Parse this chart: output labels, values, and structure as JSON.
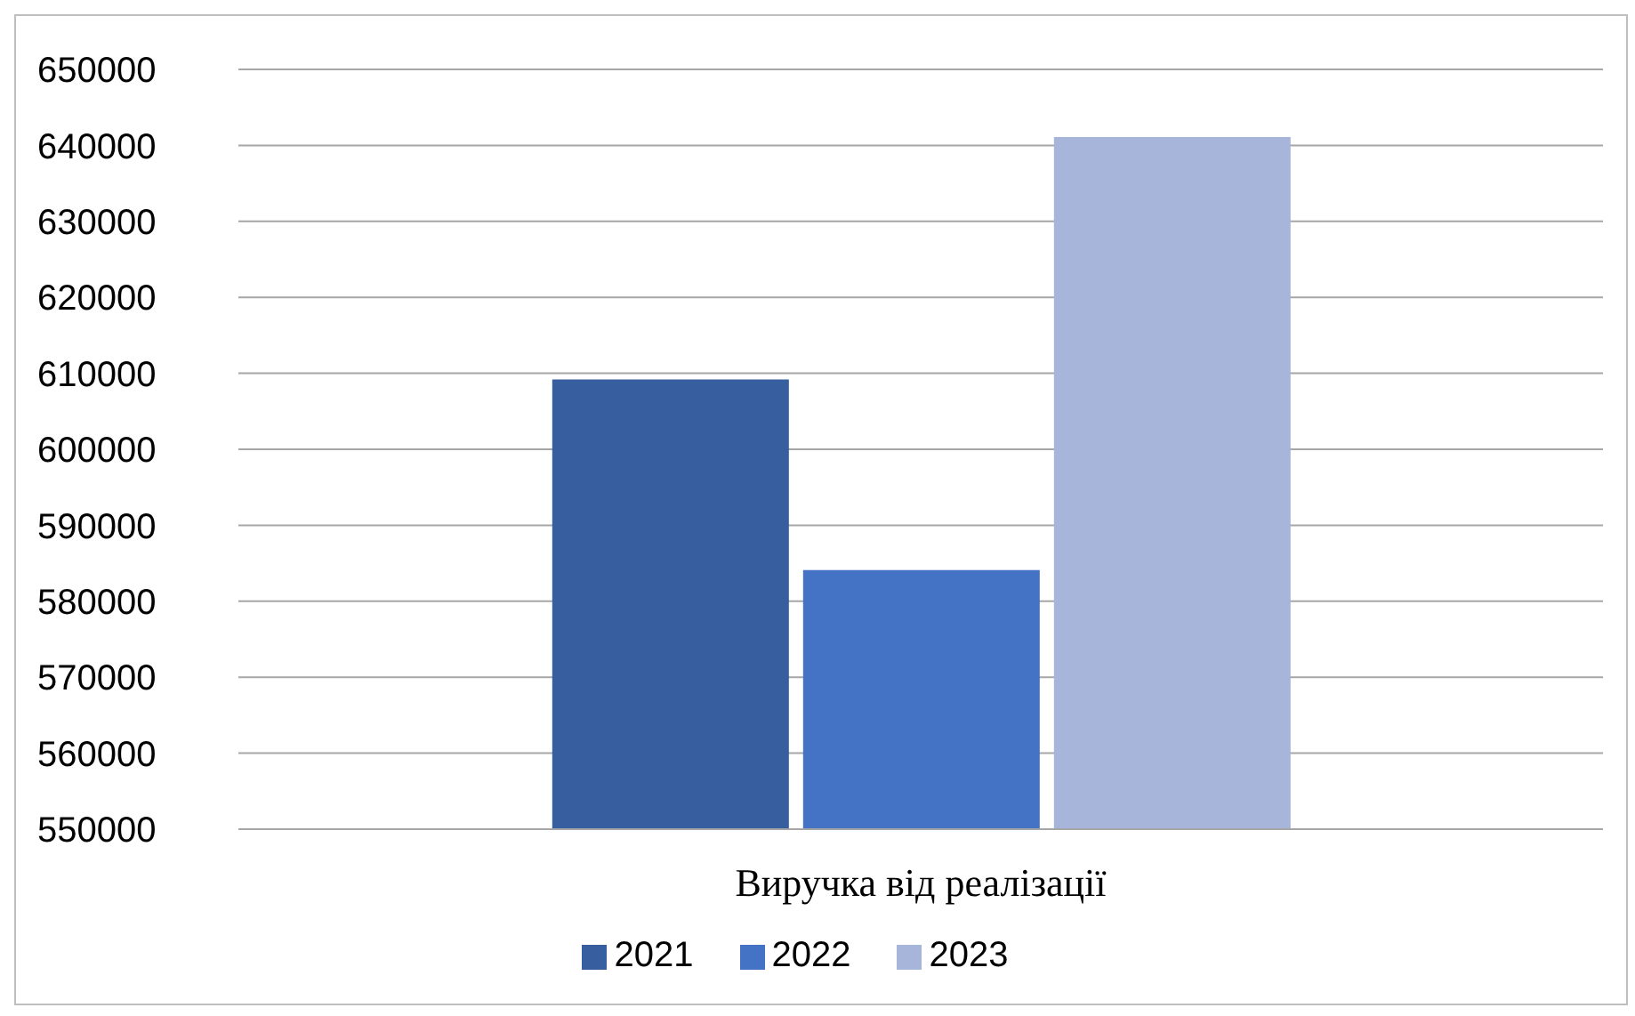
{
  "chart_data": {
    "type": "bar",
    "categories": [
      "Виручка від реалізації"
    ],
    "series": [
      {
        "name": "2021",
        "color": "#375e9f",
        "values": [
          609200
        ]
      },
      {
        "name": "2022",
        "color": "#4472c4",
        "values": [
          584100
        ]
      },
      {
        "name": "2023",
        "color": "#a7b5da",
        "values": [
          641100
        ]
      }
    ],
    "ylim": [
      550000,
      650000
    ],
    "yticks": [
      550000,
      560000,
      570000,
      580000,
      590000,
      600000,
      610000,
      620000,
      630000,
      640000,
      650000
    ],
    "grid": "y",
    "legend": "bottom"
  }
}
